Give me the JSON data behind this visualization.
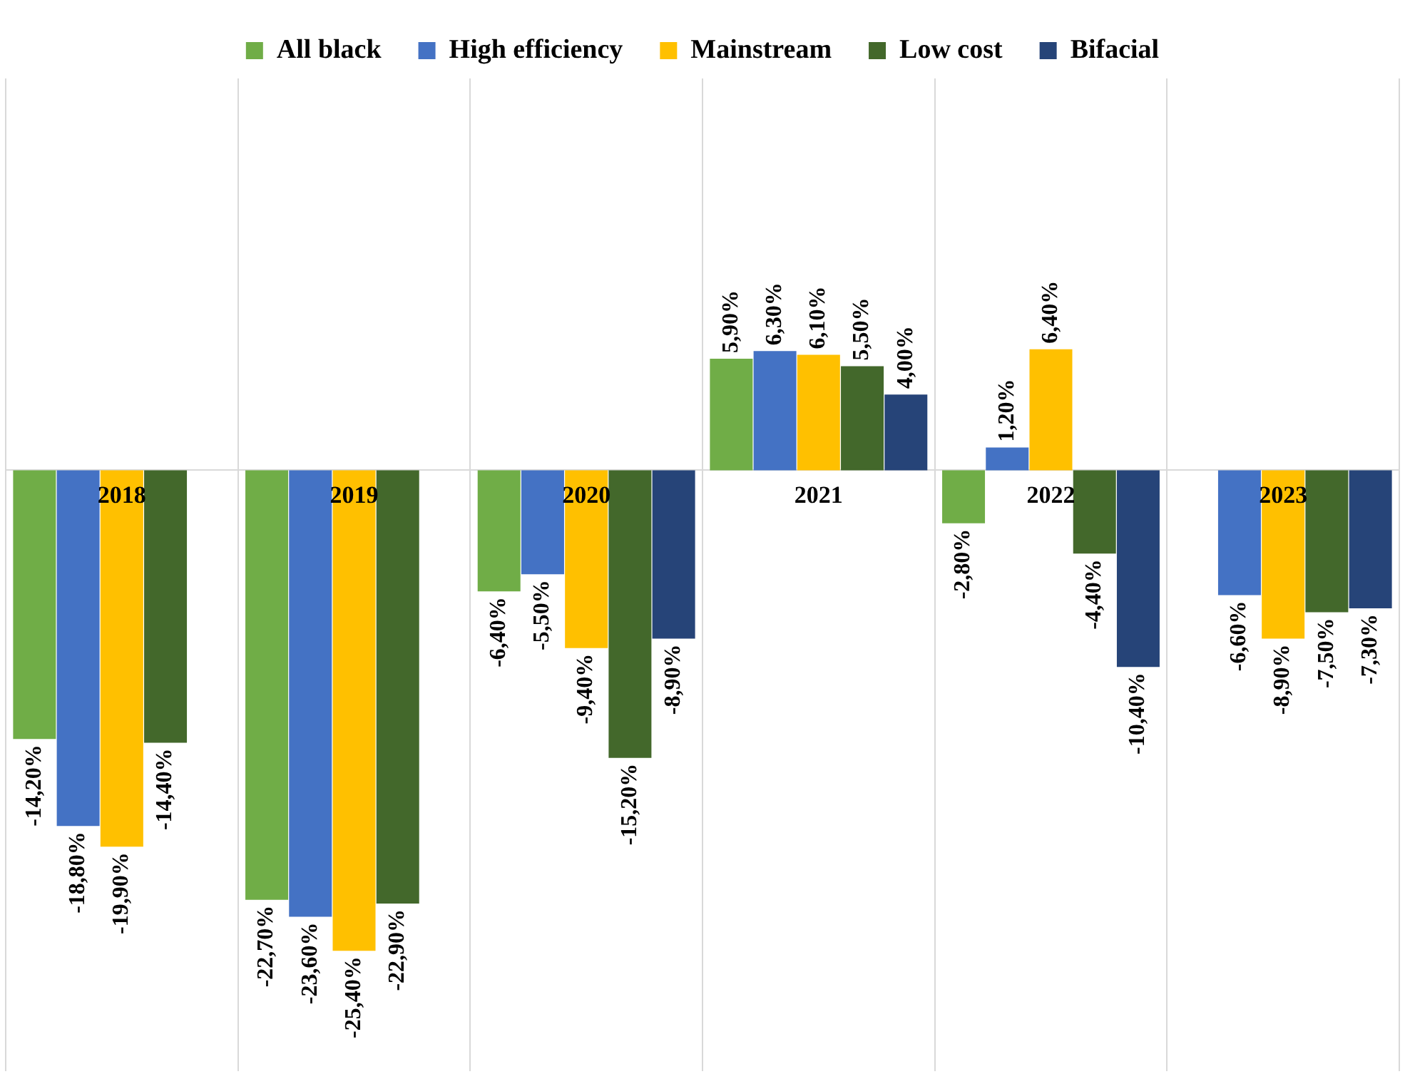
{
  "chart_data": {
    "type": "bar",
    "categories": [
      "2018",
      "2019",
      "2020",
      "2021",
      "2022",
      "2023"
    ],
    "legend": "top",
    "grid": "x",
    "series": [
      {
        "name": "All black",
        "color": "#70ad47",
        "values": [
          -14.2,
          -22.7,
          -6.4,
          5.9,
          -2.8,
          null
        ],
        "value_labels": [
          "-14,20%",
          "-22,70%",
          "-6,40%",
          "5,90%",
          "-2,80%",
          null
        ]
      },
      {
        "name": "High efficiency",
        "color": "#4472c4",
        "values": [
          -18.8,
          -23.6,
          -5.5,
          6.3,
          1.2,
          -6.6
        ],
        "value_labels": [
          "-18,80%",
          "-23,60%",
          "-5,50%",
          "6,30%",
          "1,20%",
          "-6,60%"
        ]
      },
      {
        "name": "Mainstream",
        "color": "#ffc000",
        "values": [
          -19.9,
          -25.4,
          -9.4,
          6.1,
          6.4,
          -8.9
        ],
        "value_labels": [
          "-19,90%",
          "-25,40%",
          "-9,40%",
          "6,10%",
          "6,40%",
          "-8,90%"
        ]
      },
      {
        "name": "Low cost",
        "color": "#43682b",
        "values": [
          -14.4,
          -22.9,
          -15.2,
          5.5,
          -4.4,
          -7.5
        ],
        "value_labels": [
          "-14,40%",
          "-22,90%",
          "-15,20%",
          "5,50%",
          "-4,40%",
          "-7,50%"
        ]
      },
      {
        "name": "Bifacial",
        "color": "#264478",
        "values": [
          null,
          null,
          -8.9,
          4.0,
          -10.4,
          -7.3
        ],
        "value_labels": [
          null,
          null,
          "-8,90%",
          "4,00%",
          "-10,40%",
          "-7,30%"
        ]
      }
    ]
  }
}
